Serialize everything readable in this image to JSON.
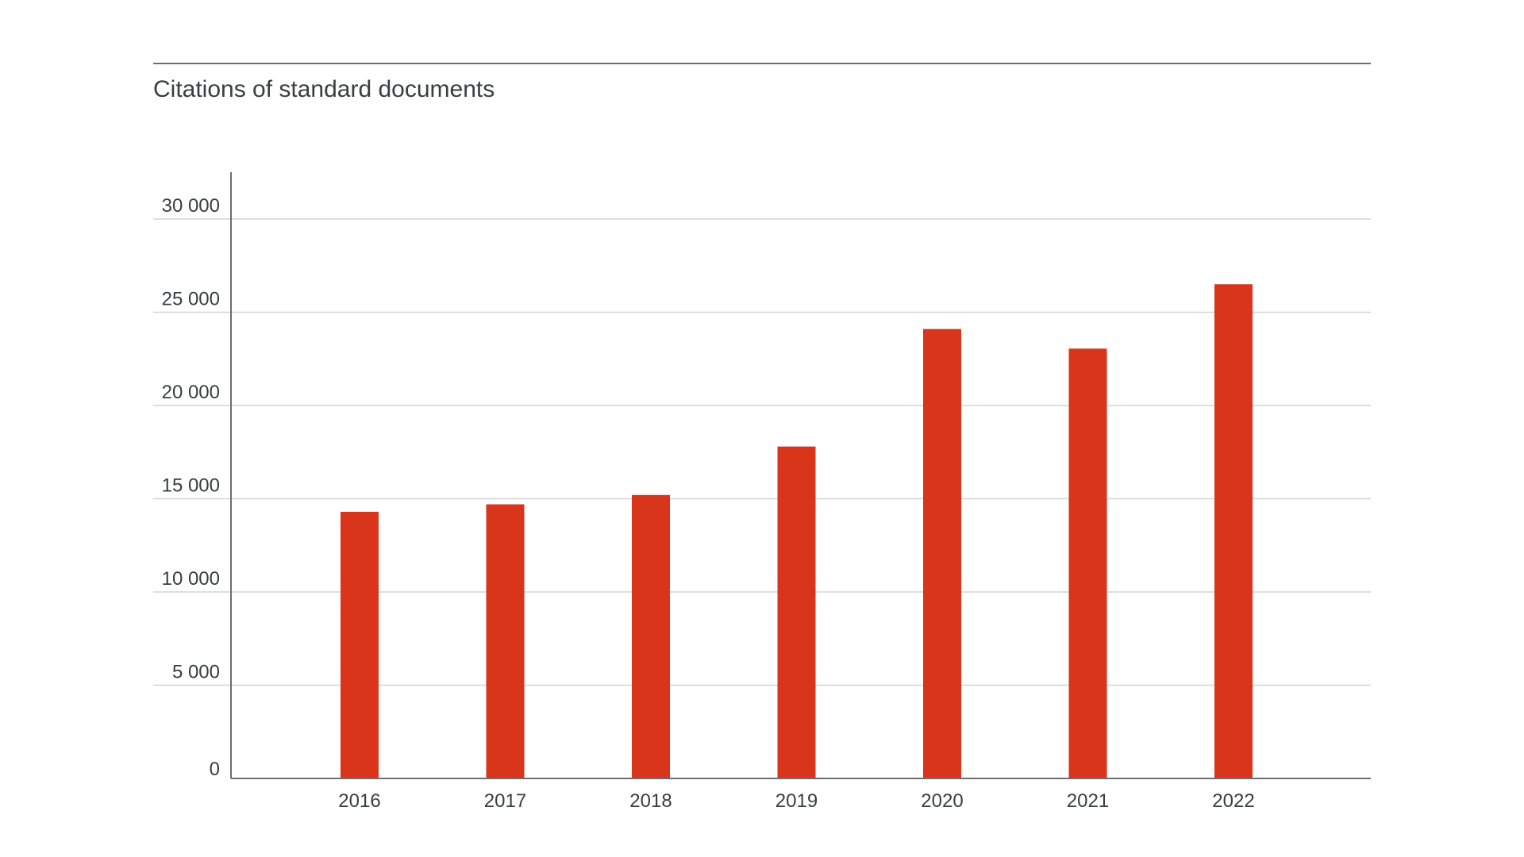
{
  "chart_data": {
    "type": "bar",
    "title": "Citations of standard documents",
    "xlabel": "",
    "ylabel": "",
    "categories": [
      "2016",
      "2017",
      "2018",
      "2019",
      "2020",
      "2021",
      "2022"
    ],
    "values": [
      14300,
      14700,
      15200,
      17800,
      24100,
      23050,
      26500
    ],
    "ylim": [
      0,
      30000
    ],
    "yticks": [
      0,
      5000,
      10000,
      15000,
      20000,
      25000,
      30000
    ],
    "ytick_labels": [
      "0",
      "5 000",
      "10 000",
      "15 000",
      "20 000",
      "25 000",
      "30 000"
    ],
    "grid": true,
    "bar_color": "#d9351b"
  }
}
